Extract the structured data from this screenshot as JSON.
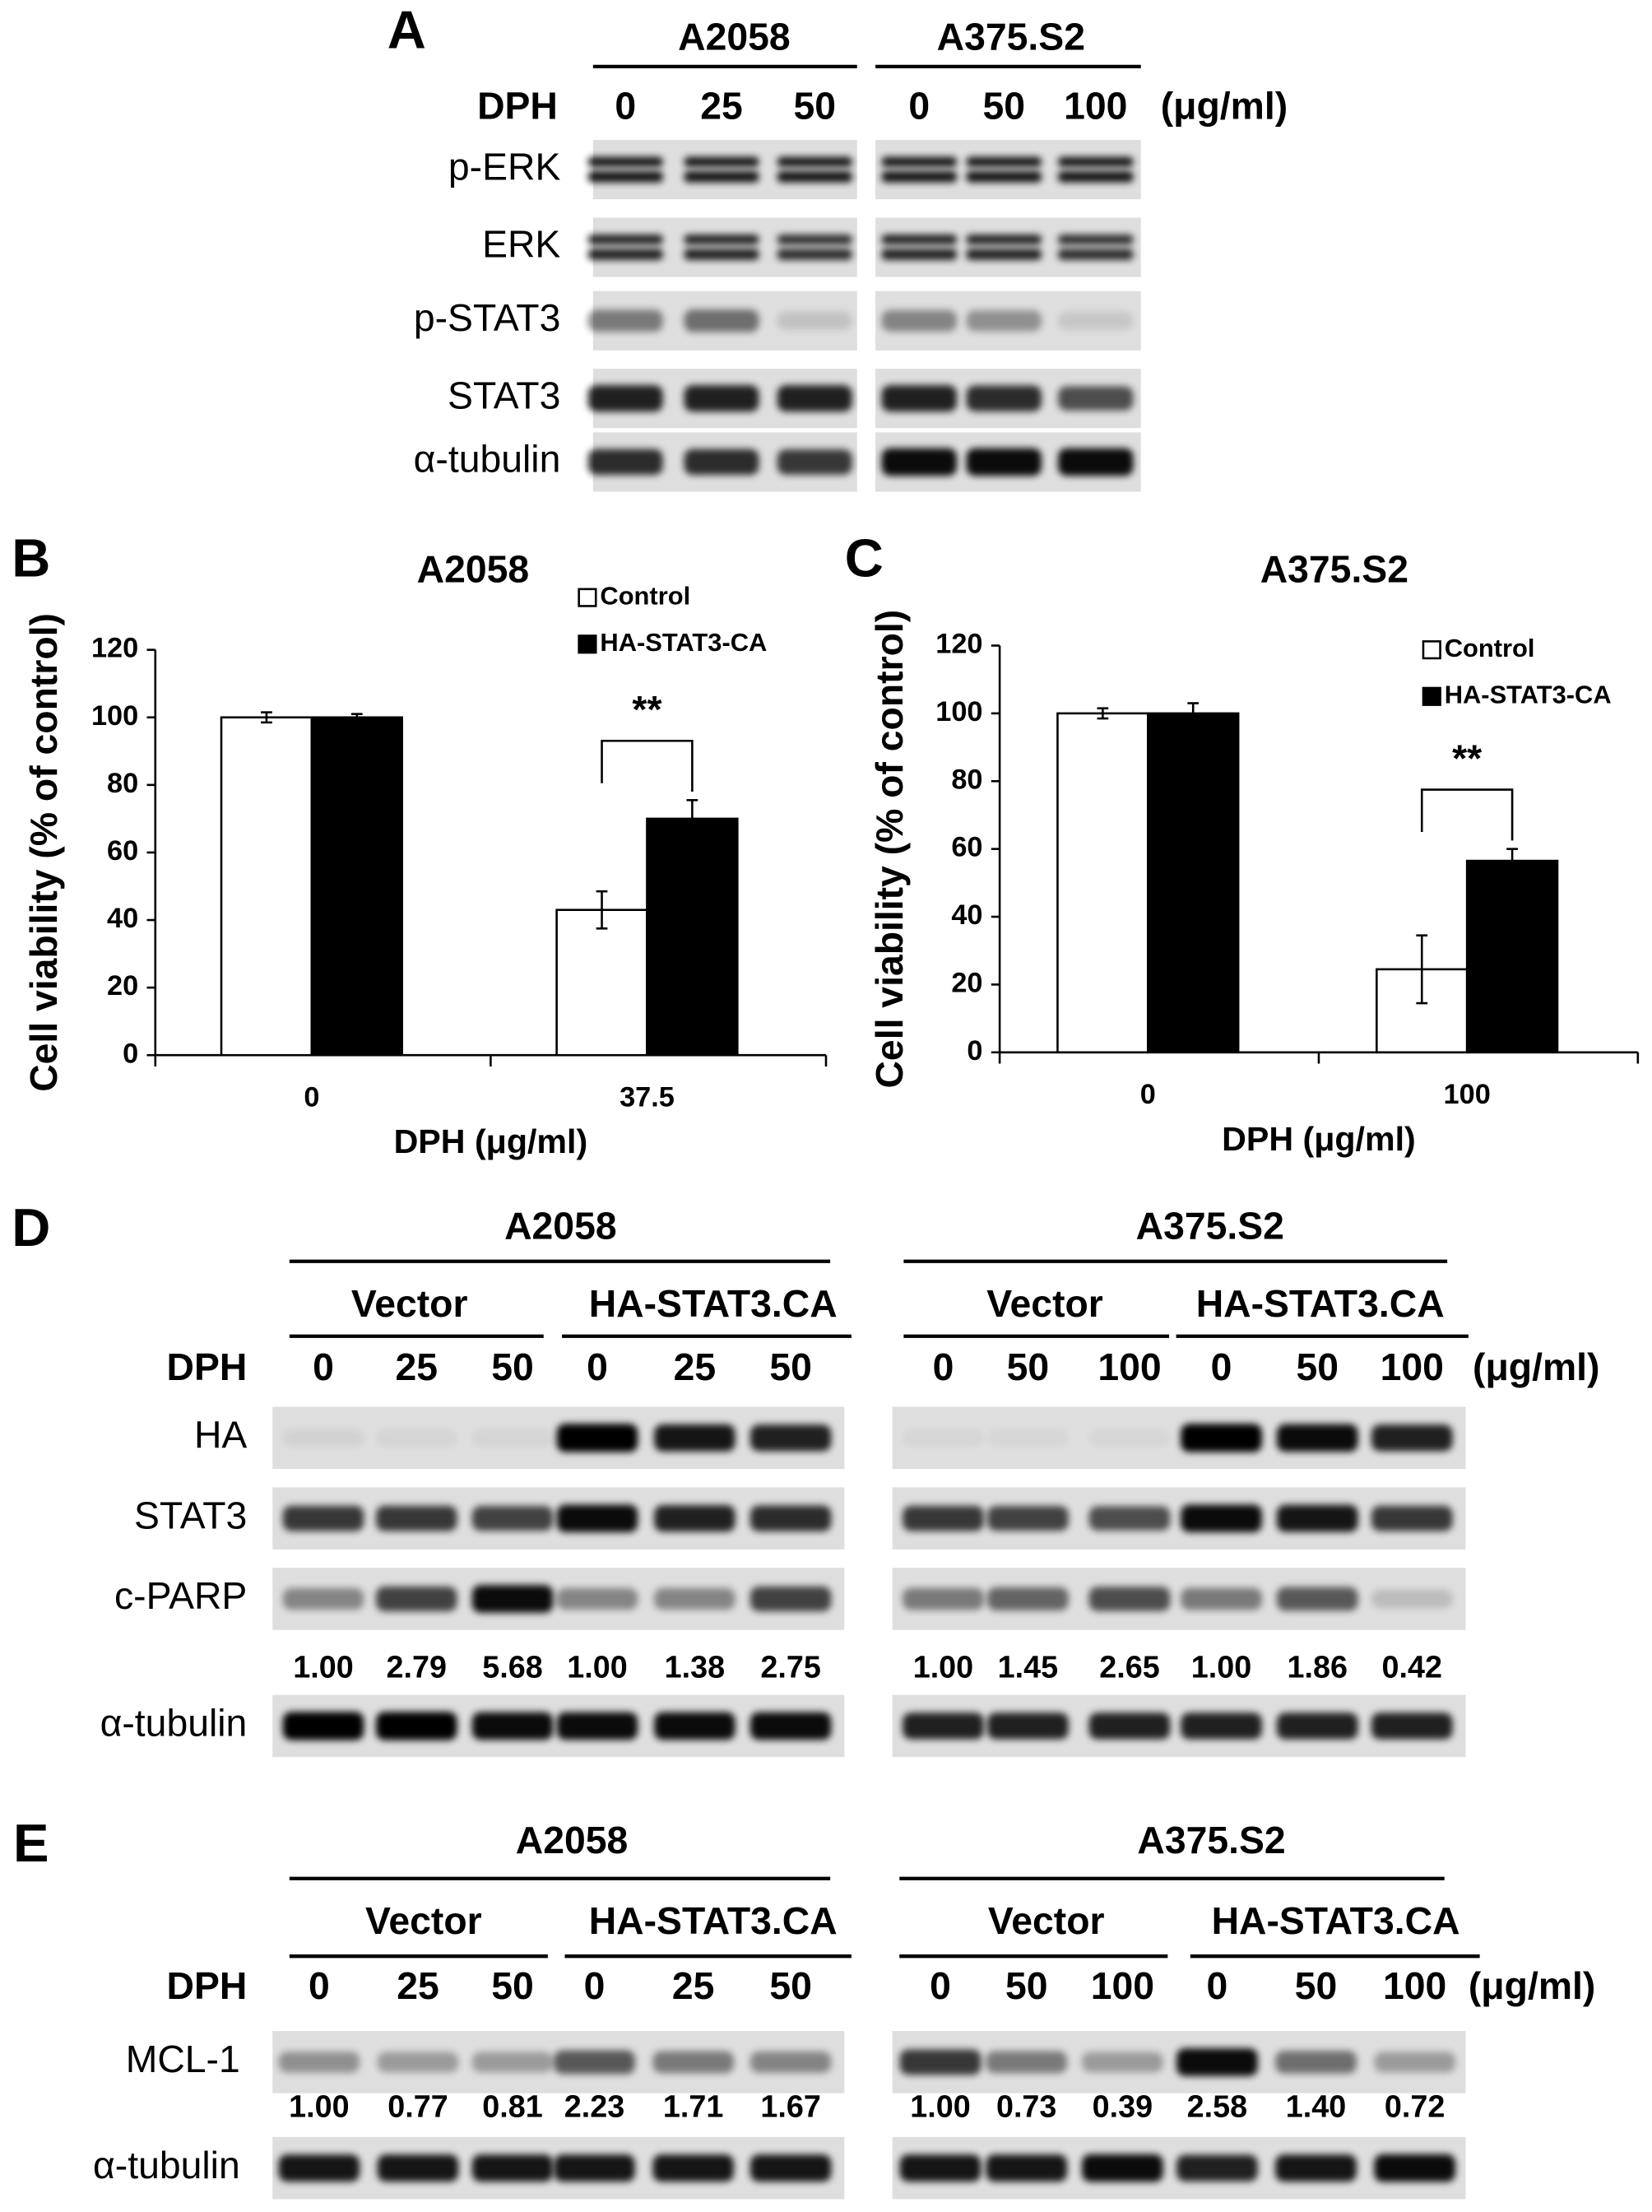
{
  "panel_a": {
    "label": "A",
    "cell_lines": [
      "A2058",
      "A375.S2"
    ],
    "treatment": "DPH",
    "doses": [
      [
        "0",
        "25",
        "50"
      ],
      [
        "0",
        "50",
        "100"
      ]
    ],
    "unit": "(μg/ml)",
    "rows": [
      "p-ERK",
      "ERK",
      "p-STAT3",
      "STAT3",
      "α-tubulin"
    ]
  },
  "chart_data": [
    {
      "type": "bar",
      "panel_label": "B",
      "title": "A2058",
      "xlabel": "DPH (μg/ml)",
      "ylabel": "Cell viability (% of control)",
      "categories": [
        "0",
        "37.5"
      ],
      "series": [
        {
          "name": "Control",
          "color": "#ffffff",
          "values": [
            100,
            43
          ],
          "errors": [
            1.5,
            5.5
          ]
        },
        {
          "name": "HA-STAT3-CA",
          "color": "#000000",
          "values": [
            100,
            70
          ],
          "errors": [
            1,
            5.5
          ]
        }
      ],
      "ylim": [
        0,
        120
      ],
      "yticks": [
        0,
        20,
        40,
        60,
        80,
        100,
        120
      ],
      "grid": false,
      "legend": "upper right",
      "annotation": "**"
    },
    {
      "type": "bar",
      "panel_label": "C",
      "title": "A375.S2",
      "xlabel": "DPH (μg/ml)",
      "ylabel": "Cell viability (% of control)",
      "categories": [
        "0",
        "100"
      ],
      "series": [
        {
          "name": "Control",
          "color": "#ffffff",
          "values": [
            100,
            24.5
          ],
          "errors": [
            1.5,
            10
          ]
        },
        {
          "name": "HA-STAT3-CA",
          "color": "#000000",
          "values": [
            100,
            56.5
          ],
          "errors": [
            3,
            3.5
          ]
        }
      ],
      "ylim": [
        0,
        120
      ],
      "yticks": [
        0,
        20,
        40,
        60,
        80,
        100,
        120
      ],
      "grid": false,
      "legend": "upper right",
      "annotation": "**"
    }
  ],
  "panel_d": {
    "label": "D",
    "treatment": "DPH",
    "unit": "(μg/ml)",
    "rows": [
      "HA",
      "STAT3",
      "c-PARP",
      "α-tubulin"
    ],
    "cell_lines": [
      {
        "name": "A2058",
        "groups": [
          "Vector",
          "HA-STAT3.CA"
        ],
        "doses": [
          "0",
          "25",
          "50",
          "0",
          "25",
          "50"
        ],
        "quant": [
          "1.00",
          "2.79",
          "5.68",
          "1.00",
          "1.38",
          "2.75"
        ]
      },
      {
        "name": "A375.S2",
        "groups": [
          "Vector",
          "HA-STAT3.CA"
        ],
        "doses": [
          "0",
          "50",
          "100",
          "0",
          "50",
          "100"
        ],
        "quant": [
          "1.00",
          "1.45",
          "2.65",
          "1.00",
          "1.86",
          "0.42"
        ]
      }
    ]
  },
  "panel_e": {
    "label": "E",
    "treatment": "DPH",
    "unit": "(μg/ml)",
    "rows": [
      "MCL-1",
      "α-tubulin"
    ],
    "cell_lines": [
      {
        "name": "A2058",
        "groups": [
          "Vector",
          "HA-STAT3.CA"
        ],
        "doses": [
          "0",
          "25",
          "50",
          "0",
          "25",
          "50"
        ],
        "quant": [
          "1.00",
          "0.77",
          "0.81",
          "2.23",
          "1.71",
          "1.67"
        ]
      },
      {
        "name": "A375.S2",
        "groups": [
          "Vector",
          "HA-STAT3.CA"
        ],
        "doses": [
          "0",
          "50",
          "100",
          "0",
          "50",
          "100"
        ],
        "quant": [
          "1.00",
          "0.73",
          "0.39",
          "2.58",
          "1.40",
          "0.72"
        ]
      }
    ]
  }
}
